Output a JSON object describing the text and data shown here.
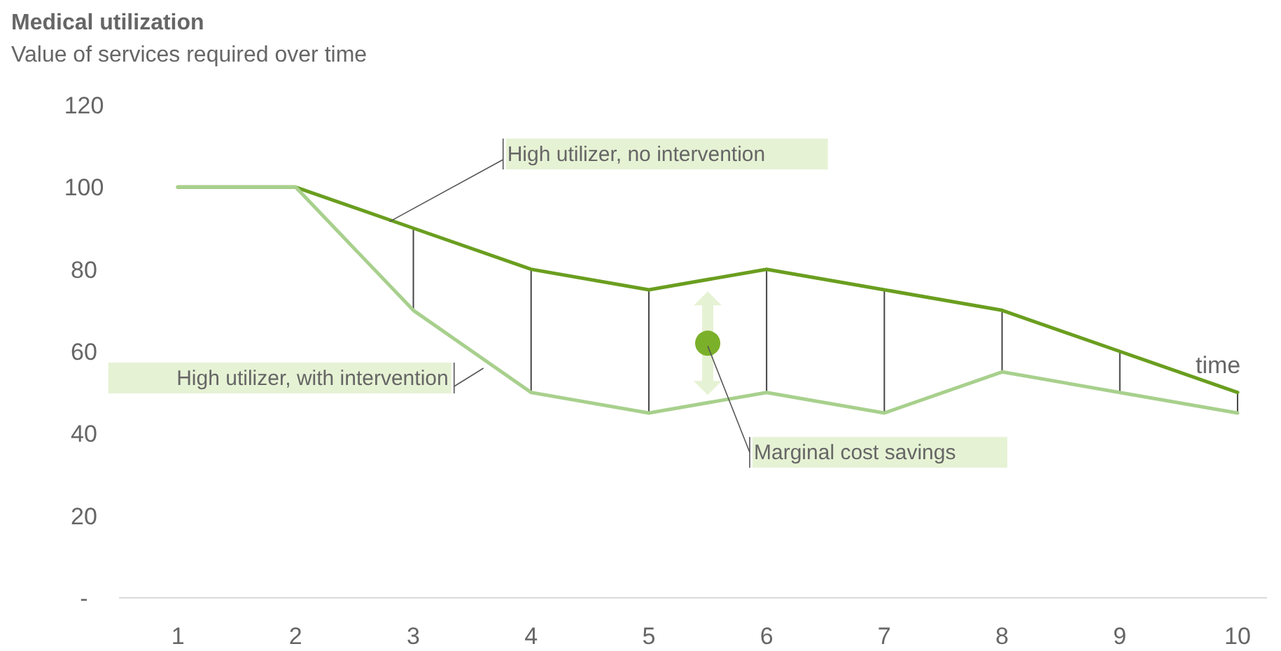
{
  "chart_data": {
    "type": "line",
    "title": "Medical utilization",
    "subtitle": "Value of services required over time",
    "xlabel": "time",
    "x": [
      1,
      2,
      3,
      4,
      5,
      6,
      7,
      8,
      9,
      10
    ],
    "series": [
      {
        "name": "High utilizer, no intervention",
        "color": "#6a9e1f",
        "values": [
          100,
          100,
          90,
          80,
          75,
          80,
          75,
          70,
          60,
          50
        ]
      },
      {
        "name": "High utilizer, with intervention",
        "color": "#a8d08d",
        "values": [
          100,
          100,
          70,
          50,
          45,
          50,
          45,
          55,
          50,
          45
        ]
      }
    ],
    "annotations": [
      {
        "text": "Marginal cost savings",
        "x": 5.5,
        "y": 62
      }
    ],
    "xlim": [
      0.5,
      10.25
    ],
    "xticks": [
      1,
      2,
      3,
      4,
      5,
      6,
      7,
      8,
      9,
      10
    ],
    "ylim": [
      0,
      120
    ],
    "yticks": [
      {
        "value": 0,
        "label": "-"
      },
      20,
      40,
      60,
      80,
      100,
      120
    ],
    "grid": false,
    "marker": "none",
    "line_style": "solid"
  }
}
